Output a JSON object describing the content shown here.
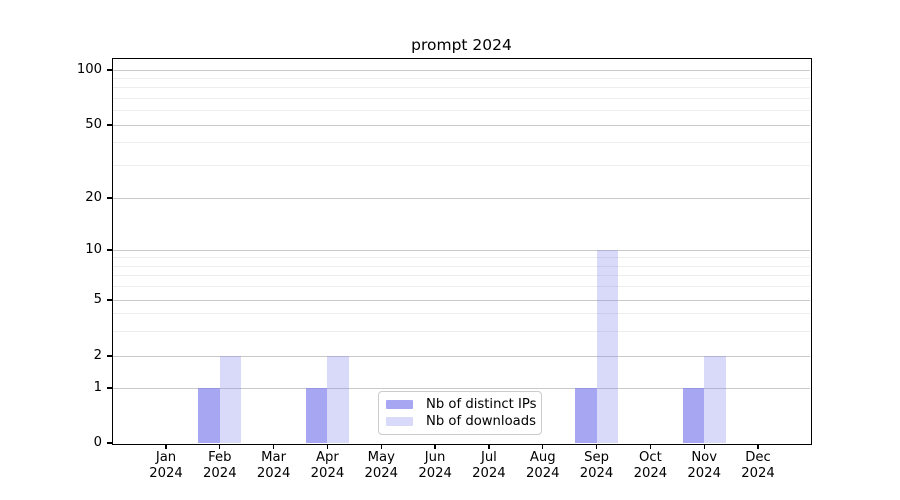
{
  "chart_data": {
    "type": "bar",
    "title": "prompt 2024",
    "categories": [
      "Jan 2024",
      "Feb 2024",
      "Mar 2024",
      "Apr 2024",
      "May 2024",
      "Jun 2024",
      "Jul 2024",
      "Aug 2024",
      "Sep 2024",
      "Oct 2024",
      "Nov 2024",
      "Dec 2024"
    ],
    "series": [
      {
        "name": "Nb of distinct IPs",
        "color": "rgba(128,128,238,0.70)",
        "values": [
          0,
          1,
          0,
          1,
          0,
          0,
          0,
          0,
          1,
          0,
          1,
          0
        ]
      },
      {
        "name": "Nb of downloads",
        "color": "rgba(128,128,238,0.30)",
        "values": [
          0,
          2,
          0,
          2,
          0,
          0,
          0,
          0,
          10,
          0,
          2,
          0
        ]
      }
    ],
    "y_axis": {
      "scale": "log-like",
      "major_ticks": [
        0,
        1,
        2,
        5,
        10,
        20,
        50,
        100
      ],
      "minor_gridlines": [
        3,
        4,
        6,
        7,
        8,
        9,
        30,
        40,
        60,
        70,
        80,
        90
      ],
      "range": [
        0,
        120
      ]
    },
    "legend": {
      "position": "bottom-center",
      "entries": [
        "Nb of distinct IPs",
        "Nb of downloads"
      ]
    },
    "grid": true
  },
  "colors": {
    "bar_distinct_ips": "rgba(128,128,238,0.70)",
    "bar_downloads": "rgba(128,128,238,0.30)",
    "major_grid": "#c9c9c9",
    "minor_grid": "#ededed",
    "axis": "#000000",
    "background": "#ffffff"
  }
}
